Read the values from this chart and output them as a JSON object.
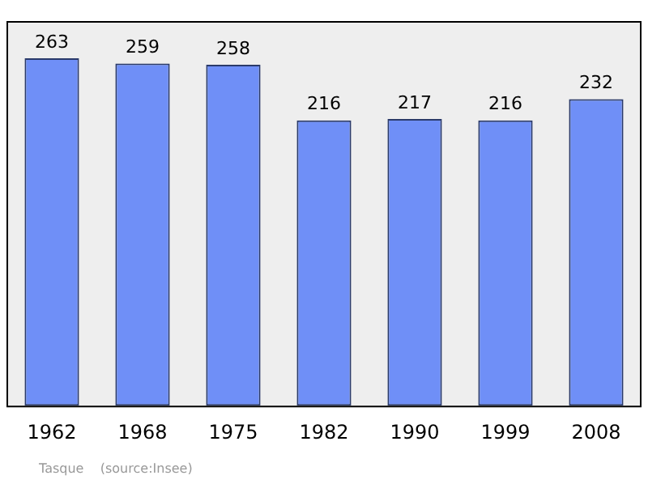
{
  "chart_data": {
    "type": "bar",
    "categories": [
      "1962",
      "1968",
      "1975",
      "1982",
      "1990",
      "1999",
      "2008"
    ],
    "values": [
      263,
      259,
      258,
      216,
      217,
      216,
      232
    ],
    "color": "#6f8ff7",
    "data_labels": true,
    "annotations": [
      "Tasque    (source:Insee)"
    ]
  }
}
